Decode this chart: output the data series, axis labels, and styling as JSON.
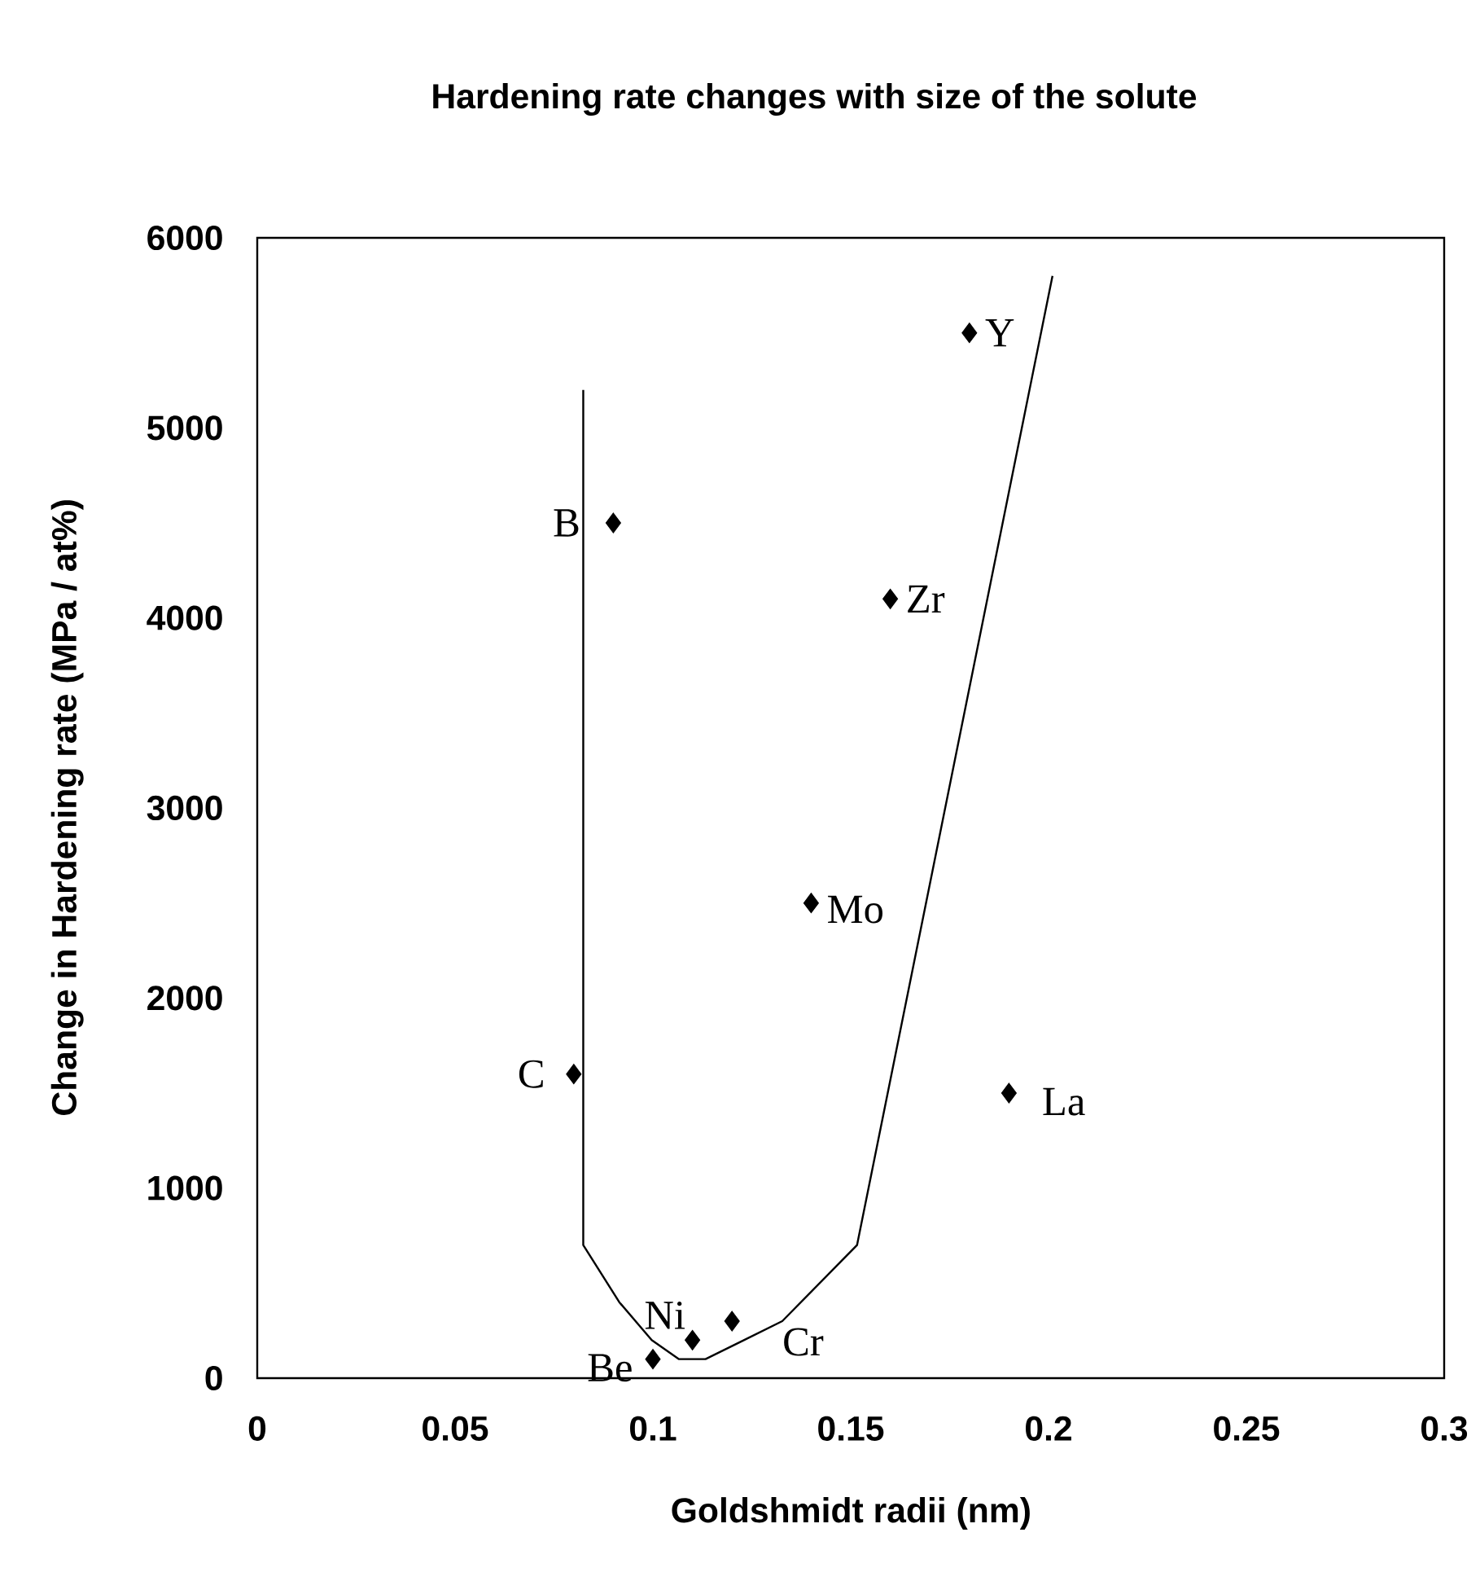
{
  "chart_data": {
    "type": "scatter",
    "title": "Hardening rate changes with size of the solute",
    "xlabel": "Goldshmidt radii (nm)",
    "ylabel": "Change in Hardening rate (MPa / at%)",
    "xlim": [
      0,
      0.3
    ],
    "xticks": [
      0,
      0.05,
      0.1,
      0.15,
      0.2,
      0.25,
      0.3
    ],
    "ylim": [
      0,
      6000
    ],
    "yticks": [
      0,
      1000,
      2000,
      3000,
      4000,
      5000,
      6000
    ],
    "grid": false,
    "marker": "diamond",
    "series": [
      {
        "color": "#000000",
        "x": [
          0.18,
          0.09,
          0.16,
          0.14,
          0.08,
          0.19,
          0.11,
          0.1,
          0.12
        ],
        "values": [
          5500,
          4500,
          4100,
          2500,
          1600,
          1500,
          200,
          100,
          300
        ]
      },
      {
        "type": "line",
        "marker": "none",
        "color": "#000000",
        "x": [
          0.0824,
          0.0824,
          0.0915,
          0.0997,
          0.1066,
          0.1133,
          0.123,
          0.1327,
          0.1516,
          0.201
        ],
        "values": [
          5200,
          700,
          400,
          200,
          100,
          100,
          200,
          300,
          700,
          5800
        ]
      }
    ],
    "annotations": [
      {
        "text": "Y",
        "x": 0.18,
        "y": 5500
      },
      {
        "text": "B",
        "x": 0.09,
        "y": 4500
      },
      {
        "text": "Zr",
        "x": 0.16,
        "y": 4100
      },
      {
        "text": "Mo",
        "x": 0.14,
        "y": 2500
      },
      {
        "text": "C",
        "x": 0.08,
        "y": 1600
      },
      {
        "text": "La",
        "x": 0.19,
        "y": 1500
      },
      {
        "text": "Ni",
        "x": 0.11,
        "y": 200
      },
      {
        "text": "Be",
        "x": 0.1,
        "y": 100
      },
      {
        "text": "Cr",
        "x": 0.12,
        "y": 300
      }
    ]
  }
}
